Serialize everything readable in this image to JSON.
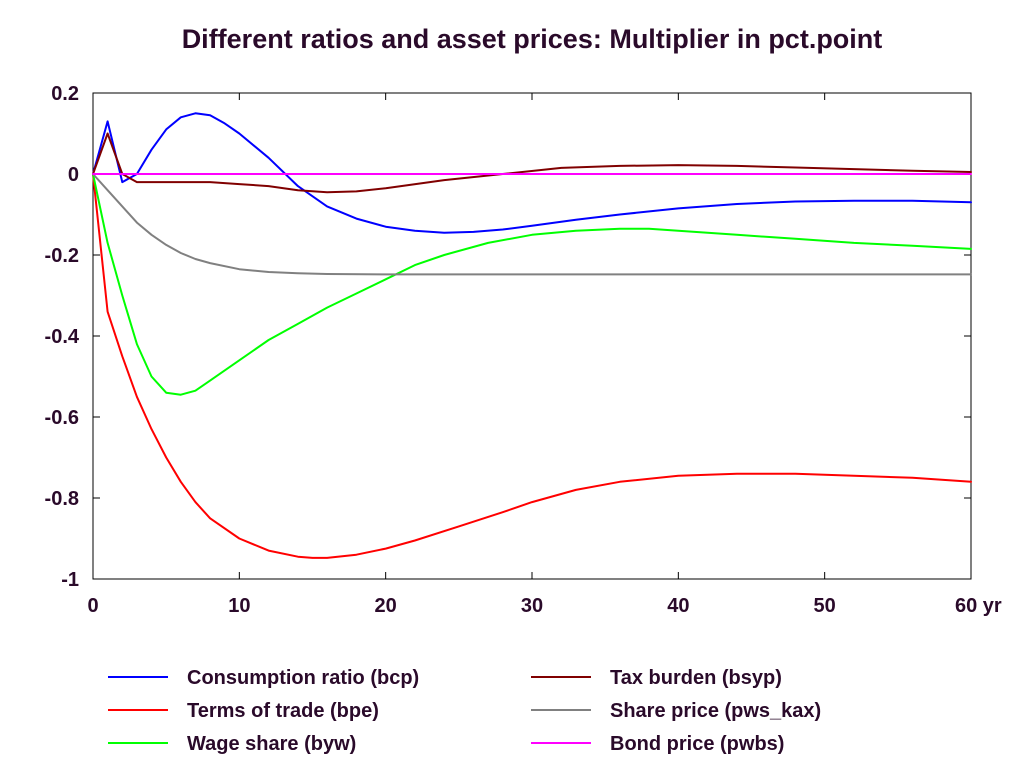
{
  "chart_data": {
    "type": "line",
    "title": "Different ratios and asset prices: Multiplier in pct.point",
    "xlabel": "",
    "ylabel": "",
    "x_unit": "yr",
    "xlim": [
      0,
      60
    ],
    "ylim": [
      -1,
      0.2
    ],
    "x_ticks": [
      0,
      10,
      20,
      30,
      40,
      50,
      60
    ],
    "x_tick_labels": [
      "0",
      "10",
      "20",
      "30",
      "40",
      "50",
      "60 yr"
    ],
    "y_ticks": [
      0.2,
      0,
      -0.2,
      -0.4,
      -0.6,
      -0.8,
      -1
    ],
    "y_tick_labels": [
      "0.2",
      "0",
      "-0.2",
      "-0.4",
      "-0.6",
      "-0.8",
      "-1"
    ],
    "grid": false,
    "legend_position": "bottom",
    "series": [
      {
        "name": "Consumption ratio (bcp)",
        "color": "#0000ff",
        "x": [
          0,
          1,
          2,
          3,
          4,
          5,
          6,
          7,
          8,
          9,
          10,
          12,
          14,
          16,
          18,
          20,
          22,
          24,
          26,
          28,
          30,
          33,
          36,
          40,
          44,
          48,
          52,
          56,
          60
        ],
        "y": [
          0,
          0.13,
          -0.02,
          0.0,
          0.06,
          0.11,
          0.14,
          0.15,
          0.145,
          0.125,
          0.1,
          0.04,
          -0.03,
          -0.08,
          -0.11,
          -0.13,
          -0.14,
          -0.145,
          -0.143,
          -0.137,
          -0.128,
          -0.113,
          -0.1,
          -0.085,
          -0.074,
          -0.068,
          -0.066,
          -0.066,
          -0.07
        ]
      },
      {
        "name": "Terms of trade (bpe)",
        "color": "#ff0000",
        "x": [
          0,
          1,
          2,
          3,
          4,
          5,
          6,
          7,
          8,
          10,
          12,
          14,
          15,
          16,
          18,
          20,
          22,
          25,
          28,
          30,
          33,
          36,
          40,
          44,
          48,
          52,
          56,
          60
        ],
        "y": [
          0,
          -0.34,
          -0.45,
          -0.55,
          -0.63,
          -0.7,
          -0.76,
          -0.81,
          -0.85,
          -0.9,
          -0.93,
          -0.945,
          -0.948,
          -0.948,
          -0.94,
          -0.925,
          -0.905,
          -0.87,
          -0.835,
          -0.81,
          -0.78,
          -0.76,
          -0.745,
          -0.74,
          -0.74,
          -0.745,
          -0.75,
          -0.76
        ]
      },
      {
        "name": "Wage share (byw)",
        "color": "#00ff00",
        "x": [
          0,
          1,
          2,
          3,
          4,
          5,
          6,
          7,
          8,
          10,
          12,
          14,
          16,
          18,
          20,
          22,
          24,
          27,
          30,
          33,
          36,
          38,
          40,
          44,
          48,
          52,
          56,
          60
        ],
        "y": [
          0,
          -0.17,
          -0.3,
          -0.42,
          -0.5,
          -0.54,
          -0.545,
          -0.535,
          -0.51,
          -0.46,
          -0.41,
          -0.37,
          -0.33,
          -0.295,
          -0.26,
          -0.225,
          -0.2,
          -0.17,
          -0.15,
          -0.14,
          -0.135,
          -0.135,
          -0.14,
          -0.15,
          -0.16,
          -0.17,
          -0.177,
          -0.185
        ]
      },
      {
        "name": "Tax burden (bsyp)",
        "color": "#800000",
        "x": [
          0,
          1,
          2,
          3,
          5,
          8,
          10,
          12,
          14,
          16,
          18,
          20,
          24,
          28,
          32,
          36,
          40,
          44,
          48,
          52,
          56,
          60
        ],
        "y": [
          0,
          0.1,
          0.0,
          -0.02,
          -0.02,
          -0.02,
          -0.025,
          -0.03,
          -0.04,
          -0.045,
          -0.043,
          -0.035,
          -0.015,
          0.0,
          0.015,
          0.02,
          0.022,
          0.02,
          0.016,
          0.012,
          0.008,
          0.005
        ]
      },
      {
        "name": "Share price (pws_kax)",
        "color": "#808080",
        "x": [
          0,
          1,
          2,
          3,
          4,
          5,
          6,
          7,
          8,
          10,
          12,
          14,
          16,
          20,
          30,
          40,
          50,
          60
        ],
        "y": [
          0,
          -0.04,
          -0.08,
          -0.12,
          -0.15,
          -0.175,
          -0.195,
          -0.21,
          -0.22,
          -0.235,
          -0.242,
          -0.245,
          -0.247,
          -0.248,
          -0.248,
          -0.248,
          -0.248,
          -0.248
        ]
      },
      {
        "name": "Bond price (pwbs)",
        "color": "#ff00ff",
        "x": [
          0,
          60
        ],
        "y": [
          0,
          0
        ]
      }
    ]
  }
}
